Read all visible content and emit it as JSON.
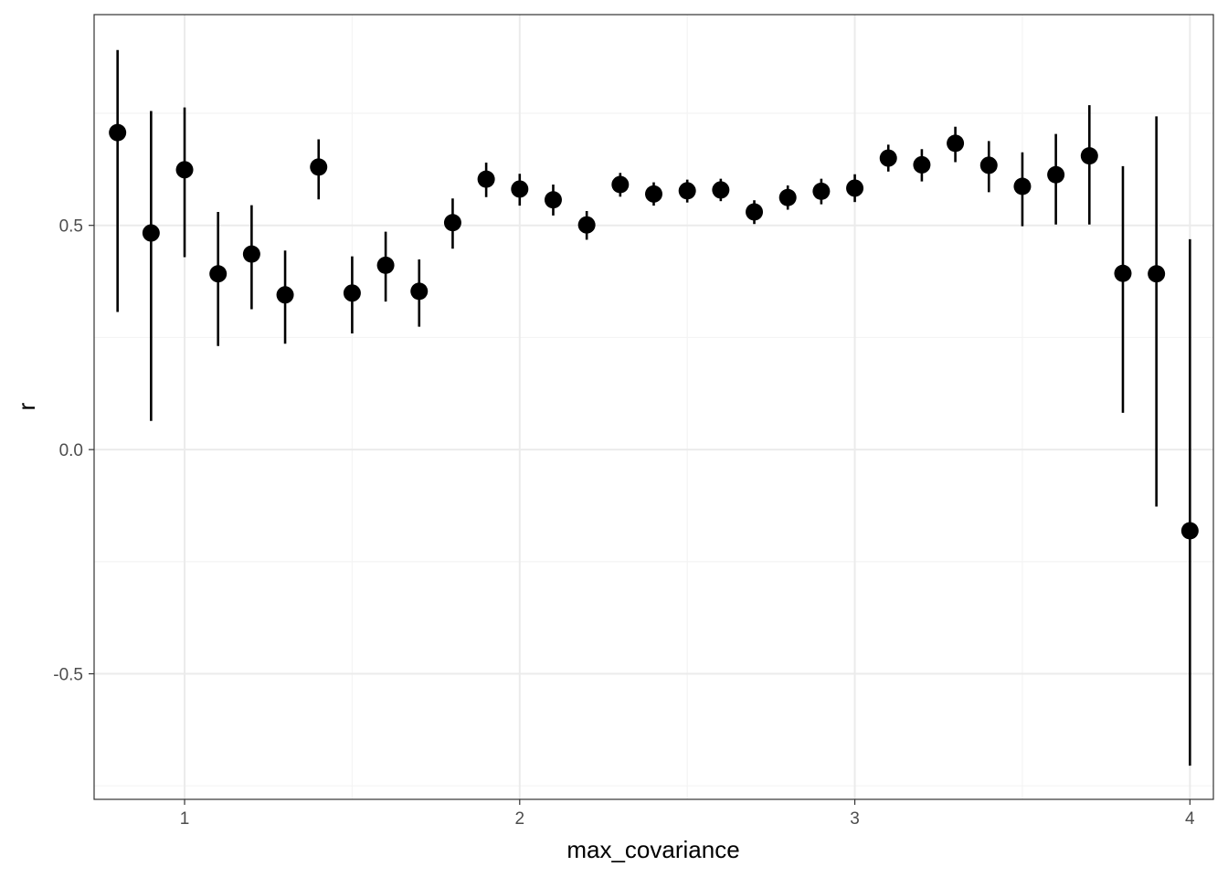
{
  "chart_data": {
    "type": "scatter",
    "title": "",
    "xlabel": "max_covariance",
    "ylabel": "r",
    "xlim": [
      0.73,
      4.07
    ],
    "ylim": [
      -0.78,
      0.97
    ],
    "x_ticks": [
      1,
      2,
      3,
      4
    ],
    "x_tick_labels": [
      "1",
      "2",
      "3",
      "4"
    ],
    "y_ticks": [
      -0.5,
      0.0,
      0.5
    ],
    "y_tick_labels": [
      "-0.5",
      "0.0",
      "0.5"
    ],
    "x_minor_gridlines": [
      1.5,
      2.5,
      3.5
    ],
    "y_minor_gridlines": [
      -0.75,
      -0.25,
      0.25,
      0.75
    ],
    "grid": true,
    "legend": "none",
    "colors": {
      "point": "#000000",
      "errorbar": "#000000",
      "grid_major": "#ebebeb",
      "grid_minor": "#f4f4f4",
      "panel_border": "#333333"
    },
    "series": [
      {
        "points": [
          {
            "x": 0.8,
            "y": 0.707,
            "ymin": 0.307,
            "ymax": 0.891
          },
          {
            "x": 0.9,
            "y": 0.483,
            "ymin": 0.064,
            "ymax": 0.755
          },
          {
            "x": 1.0,
            "y": 0.624,
            "ymin": 0.429,
            "ymax": 0.763
          },
          {
            "x": 1.1,
            "y": 0.392,
            "ymin": 0.231,
            "ymax": 0.53
          },
          {
            "x": 1.2,
            "y": 0.436,
            "ymin": 0.313,
            "ymax": 0.545
          },
          {
            "x": 1.3,
            "y": 0.345,
            "ymin": 0.236,
            "ymax": 0.444
          },
          {
            "x": 1.4,
            "y": 0.63,
            "ymin": 0.558,
            "ymax": 0.692
          },
          {
            "x": 1.5,
            "y": 0.349,
            "ymin": 0.259,
            "ymax": 0.431
          },
          {
            "x": 1.6,
            "y": 0.411,
            "ymin": 0.33,
            "ymax": 0.486
          },
          {
            "x": 1.7,
            "y": 0.353,
            "ymin": 0.274,
            "ymax": 0.424
          },
          {
            "x": 1.8,
            "y": 0.506,
            "ymin": 0.448,
            "ymax": 0.56
          },
          {
            "x": 1.9,
            "y": 0.603,
            "ymin": 0.563,
            "ymax": 0.64
          },
          {
            "x": 2.0,
            "y": 0.581,
            "ymin": 0.544,
            "ymax": 0.615
          },
          {
            "x": 2.1,
            "y": 0.557,
            "ymin": 0.522,
            "ymax": 0.591
          },
          {
            "x": 2.2,
            "y": 0.501,
            "ymin": 0.468,
            "ymax": 0.532
          },
          {
            "x": 2.3,
            "y": 0.591,
            "ymin": 0.564,
            "ymax": 0.617
          },
          {
            "x": 2.4,
            "y": 0.57,
            "ymin": 0.544,
            "ymax": 0.596
          },
          {
            "x": 2.5,
            "y": 0.577,
            "ymin": 0.551,
            "ymax": 0.602
          },
          {
            "x": 2.6,
            "y": 0.579,
            "ymin": 0.554,
            "ymax": 0.604
          },
          {
            "x": 2.7,
            "y": 0.53,
            "ymin": 0.503,
            "ymax": 0.556
          },
          {
            "x": 2.8,
            "y": 0.562,
            "ymin": 0.535,
            "ymax": 0.589
          },
          {
            "x": 2.9,
            "y": 0.576,
            "ymin": 0.547,
            "ymax": 0.604
          },
          {
            "x": 3.0,
            "y": 0.583,
            "ymin": 0.552,
            "ymax": 0.614
          },
          {
            "x": 3.1,
            "y": 0.65,
            "ymin": 0.62,
            "ymax": 0.68
          },
          {
            "x": 3.2,
            "y": 0.635,
            "ymin": 0.598,
            "ymax": 0.67
          },
          {
            "x": 3.3,
            "y": 0.683,
            "ymin": 0.641,
            "ymax": 0.72
          },
          {
            "x": 3.4,
            "y": 0.634,
            "ymin": 0.574,
            "ymax": 0.688
          },
          {
            "x": 3.5,
            "y": 0.587,
            "ymin": 0.498,
            "ymax": 0.663
          },
          {
            "x": 3.6,
            "y": 0.613,
            "ymin": 0.502,
            "ymax": 0.704
          },
          {
            "x": 3.7,
            "y": 0.655,
            "ymin": 0.502,
            "ymax": 0.768
          },
          {
            "x": 3.8,
            "y": 0.393,
            "ymin": 0.082,
            "ymax": 0.632
          },
          {
            "x": 3.9,
            "y": 0.392,
            "ymin": -0.127,
            "ymax": 0.743
          },
          {
            "x": 4.0,
            "y": -0.181,
            "ymin": -0.705,
            "ymax": 0.469
          }
        ]
      }
    ]
  }
}
